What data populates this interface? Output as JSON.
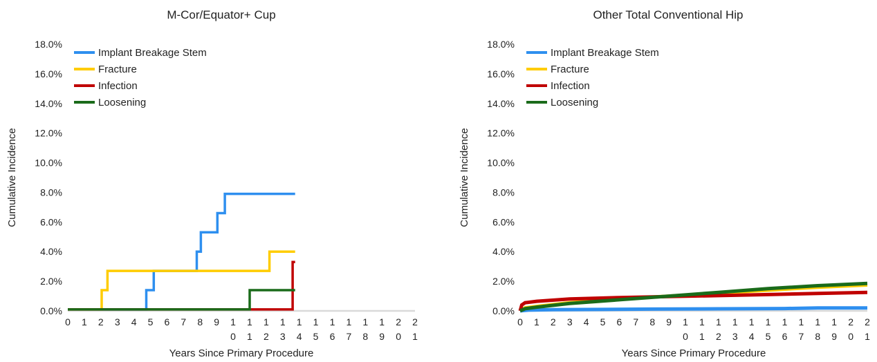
{
  "colors": {
    "Implant Breakage Stem": "#2e8fef",
    "Fracture": "#ffcc00",
    "Infection": "#c00000",
    "Loosening": "#1a6b1a",
    "axis": "#d9d9d9"
  },
  "chart_data": [
    {
      "type": "line",
      "title": "M-Cor/Equator+ Cup",
      "xlabel": "Years Since Primary Procedure",
      "ylabel": "Cumulative Incidence",
      "xlim": [
        0,
        21
      ],
      "ylim": [
        0,
        18
      ],
      "y_tick_labels": [
        "0.0%",
        "2.0%",
        "4.0%",
        "6.0%",
        "8.0%",
        "10.0%",
        "12.0%",
        "14.0%",
        "16.0%",
        "18.0%"
      ],
      "x_tick_labels": [
        [
          "0"
        ],
        [
          "1"
        ],
        [
          "2"
        ],
        [
          "3"
        ],
        [
          "4"
        ],
        [
          "5"
        ],
        [
          "6"
        ],
        [
          "7"
        ],
        [
          "8"
        ],
        [
          "9"
        ],
        [
          "1",
          "0"
        ],
        [
          "1",
          "1"
        ],
        [
          "1",
          "2"
        ],
        [
          "1",
          "3"
        ],
        [
          "1",
          "4"
        ],
        [
          "1",
          "5"
        ],
        [
          "1",
          "6"
        ],
        [
          "1",
          "7"
        ],
        [
          "1",
          "8"
        ],
        [
          "1",
          "9"
        ],
        [
          "2",
          "0"
        ],
        [
          "2",
          "1"
        ]
      ],
      "grid": false,
      "legend": "top-left",
      "series": [
        {
          "name": "Implant Breakage Stem",
          "step": true,
          "x": [
            0,
            4.75,
            4.75,
            5.2,
            5.2,
            7.8,
            7.8,
            8.05,
            8.05,
            9.05,
            9.05,
            9.5,
            9.5,
            13.75
          ],
          "y": [
            0.1,
            0.1,
            1.4,
            1.4,
            2.7,
            2.7,
            4.0,
            4.0,
            5.3,
            5.3,
            6.6,
            6.6,
            7.9,
            7.9
          ]
        },
        {
          "name": "Fracture",
          "step": true,
          "x": [
            0,
            2.05,
            2.05,
            2.4,
            2.4,
            12.2,
            12.2,
            13.75
          ],
          "y": [
            0.1,
            0.1,
            1.4,
            1.4,
            2.7,
            2.7,
            4.0,
            4.0
          ]
        },
        {
          "name": "Infection",
          "step": true,
          "x": [
            0,
            13.6,
            13.6,
            13.75
          ],
          "y": [
            0.1,
            0.1,
            3.3,
            3.3
          ]
        },
        {
          "name": "Loosening",
          "step": true,
          "x": [
            0,
            11.0,
            11.0,
            13.75
          ],
          "y": [
            0.1,
            0.1,
            1.4,
            1.4
          ]
        }
      ]
    },
    {
      "type": "line",
      "title": "Other Total Conventional Hip",
      "xlabel": "Years Since Primary Procedure",
      "ylabel": "Cumulative Incidence",
      "xlim": [
        0,
        21
      ],
      "ylim": [
        0,
        18
      ],
      "y_tick_labels": [
        "0.0%",
        "2.0%",
        "4.0%",
        "6.0%",
        "8.0%",
        "10.0%",
        "12.0%",
        "14.0%",
        "16.0%",
        "18.0%"
      ],
      "x_tick_labels": [
        [
          "0"
        ],
        [
          "1"
        ],
        [
          "2"
        ],
        [
          "3"
        ],
        [
          "4"
        ],
        [
          "5"
        ],
        [
          "6"
        ],
        [
          "7"
        ],
        [
          "8"
        ],
        [
          "9"
        ],
        [
          "1",
          "0"
        ],
        [
          "1",
          "1"
        ],
        [
          "1",
          "2"
        ],
        [
          "1",
          "3"
        ],
        [
          "1",
          "4"
        ],
        [
          "1",
          "5"
        ],
        [
          "1",
          "6"
        ],
        [
          "1",
          "7"
        ],
        [
          "1",
          "8"
        ],
        [
          "1",
          "9"
        ],
        [
          "2",
          "0"
        ],
        [
          "2",
          "1"
        ]
      ],
      "grid": false,
      "legend": "top-left",
      "series": [
        {
          "name": "Implant Breakage Stem",
          "step": false,
          "x": [
            0,
            0.5,
            2,
            5,
            8,
            12,
            16,
            18,
            21
          ],
          "y": [
            0.0,
            0.05,
            0.08,
            0.1,
            0.12,
            0.14,
            0.16,
            0.2,
            0.2
          ]
        },
        {
          "name": "Fracture",
          "step": false,
          "x": [
            0,
            0.3,
            1,
            3,
            6,
            9,
            12,
            15,
            18,
            21
          ],
          "y": [
            0.0,
            0.2,
            0.3,
            0.55,
            0.8,
            1.0,
            1.2,
            1.4,
            1.6,
            1.75
          ]
        },
        {
          "name": "Infection",
          "step": false,
          "x": [
            0,
            0.1,
            0.3,
            1,
            3,
            6,
            9,
            12,
            15,
            18,
            21
          ],
          "y": [
            0.0,
            0.4,
            0.55,
            0.65,
            0.8,
            0.9,
            0.97,
            1.03,
            1.1,
            1.18,
            1.25
          ]
        },
        {
          "name": "Loosening",
          "step": false,
          "x": [
            0,
            0.3,
            1,
            3,
            6,
            9,
            12,
            15,
            18,
            21
          ],
          "y": [
            0.0,
            0.15,
            0.25,
            0.5,
            0.75,
            1.0,
            1.25,
            1.5,
            1.7,
            1.85
          ]
        }
      ]
    }
  ]
}
